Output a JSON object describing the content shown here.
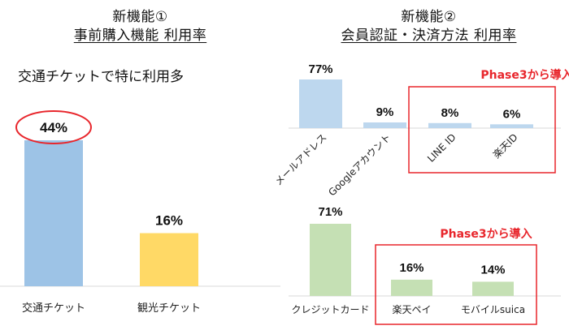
{
  "left": {
    "title_line1": "新機能①",
    "title_line2": "事前購入機能 利用率",
    "subtitle": "交通チケットで特に利用多"
  },
  "right": {
    "title_line1": "新機能②",
    "title_line2": "会員認証・決済方法 利用率"
  },
  "colors": {
    "blue": "#9dc3e6",
    "yellow": "#ffd966",
    "light_blue": "#bdd7ee",
    "green": "#c5e0b4",
    "highlight_red": "#e8262c"
  },
  "chart_data": [
    {
      "type": "bar",
      "title": "事前購入機能 利用率",
      "categories": [
        "交通チケット",
        "観光チケット"
      ],
      "values": [
        44,
        16
      ],
      "labels": [
        "44%",
        "16%"
      ],
      "unit": "%",
      "highlight": "交通チケット"
    },
    {
      "type": "bar",
      "title": "会員認証 利用率",
      "categories": [
        "メールアドレス",
        "Googleアカウント",
        "LINE ID",
        "楽天ID"
      ],
      "values": [
        77,
        9,
        8,
        6
      ],
      "labels": [
        "77%",
        "9%",
        "8%",
        "6%"
      ],
      "unit": "%",
      "annotation": "Phase3から導入",
      "annotated_categories": [
        "LINE ID",
        "楽天ID"
      ]
    },
    {
      "type": "bar",
      "title": "決済方法 利用率",
      "categories": [
        "クレジットカード",
        "楽天ペイ",
        "モバイルsuica"
      ],
      "values": [
        71,
        16,
        14
      ],
      "labels": [
        "71%",
        "16%",
        "14%"
      ],
      "unit": "%",
      "annotation": "Phase3から導入",
      "annotated_categories": [
        "楽天ペイ",
        "モバイルsuica"
      ]
    }
  ]
}
